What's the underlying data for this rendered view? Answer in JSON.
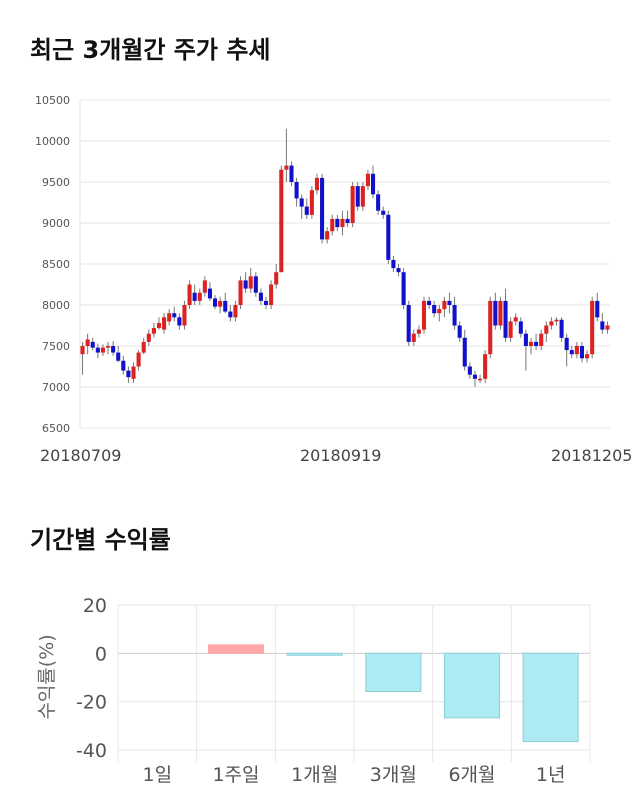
{
  "sections": {
    "candle_title": "최근 3개월간 주가 추세",
    "returns_title": "기간별 수익률"
  },
  "colors": {
    "up": "#dd2222",
    "down": "#1111cc",
    "grid": "#e6e6e6",
    "return_positive_fill": "#ffa7a7",
    "return_negative_fill": "#aeeaf2",
    "return_negative_stroke": "#8ccfd8"
  },
  "chart_data": [
    {
      "type": "candlestick",
      "title": "최근 3개월간 주가 추세",
      "ylim": [
        6500,
        10500
      ],
      "yticks": [
        6500,
        7000,
        7500,
        8000,
        8500,
        9000,
        9500,
        10000,
        10500
      ],
      "x_tick_labels": [
        "20180709",
        "20180919",
        "20181205"
      ],
      "grid": true,
      "ohlc": [
        [
          7400,
          7550,
          7150,
          7500
        ],
        [
          7500,
          7650,
          7400,
          7580
        ],
        [
          7550,
          7600,
          7450,
          7480
        ],
        [
          7480,
          7530,
          7350,
          7420
        ],
        [
          7420,
          7520,
          7380,
          7480
        ],
        [
          7480,
          7550,
          7400,
          7500
        ],
        [
          7500,
          7560,
          7380,
          7420
        ],
        [
          7420,
          7500,
          7300,
          7320
        ],
        [
          7320,
          7380,
          7150,
          7200
        ],
        [
          7200,
          7250,
          7050,
          7120
        ],
        [
          7100,
          7300,
          7050,
          7250
        ],
        [
          7250,
          7450,
          7200,
          7420
        ],
        [
          7420,
          7600,
          7400,
          7550
        ],
        [
          7550,
          7700,
          7500,
          7650
        ],
        [
          7650,
          7780,
          7600,
          7720
        ],
        [
          7720,
          7850,
          7700,
          7780
        ],
        [
          7700,
          7900,
          7650,
          7850
        ],
        [
          7800,
          7950,
          7750,
          7900
        ],
        [
          7900,
          7980,
          7800,
          7850
        ],
        [
          7850,
          7900,
          7700,
          7750
        ],
        [
          7750,
          8050,
          7700,
          8000
        ],
        [
          8000,
          8300,
          7950,
          8250
        ],
        [
          8150,
          8250,
          8000,
          8050
        ],
        [
          8050,
          8200,
          8000,
          8150
        ],
        [
          8150,
          8350,
          8100,
          8300
        ],
        [
          8200,
          8280,
          8050,
          8080
        ],
        [
          8080,
          8120,
          7950,
          7980
        ],
        [
          7980,
          8100,
          7900,
          8050
        ],
        [
          8050,
          8150,
          7900,
          7920
        ],
        [
          7920,
          8000,
          7800,
          7850
        ],
        [
          7850,
          8050,
          7800,
          8000
        ],
        [
          8000,
          8350,
          7950,
          8300
        ],
        [
          8300,
          8400,
          8150,
          8200
        ],
        [
          8200,
          8450,
          8150,
          8350
        ],
        [
          8350,
          8400,
          8100,
          8150
        ],
        [
          8150,
          8200,
          8000,
          8050
        ],
        [
          8050,
          8100,
          7950,
          8000
        ],
        [
          8000,
          8300,
          7950,
          8250
        ],
        [
          8250,
          8500,
          8200,
          8400
        ],
        [
          8400,
          9700,
          8400,
          9650
        ],
        [
          9650,
          10150,
          9500,
          9700
        ],
        [
          9700,
          9750,
          9450,
          9500
        ],
        [
          9500,
          9550,
          9200,
          9300
        ],
        [
          9300,
          9350,
          9050,
          9200
        ],
        [
          9200,
          9300,
          9050,
          9100
        ],
        [
          9100,
          9450,
          9050,
          9400
        ],
        [
          9400,
          9600,
          9350,
          9550
        ],
        [
          9550,
          9600,
          8750,
          8800
        ],
        [
          8800,
          8950,
          8750,
          8900
        ],
        [
          8900,
          9100,
          8850,
          9050
        ],
        [
          9050,
          9100,
          8900,
          8950
        ],
        [
          8950,
          9150,
          8850,
          9050
        ],
        [
          9050,
          9150,
          8950,
          9000
        ],
        [
          9000,
          9500,
          8950,
          9450
        ],
        [
          9450,
          9500,
          9150,
          9200
        ],
        [
          9200,
          9500,
          9150,
          9450
        ],
        [
          9450,
          9650,
          9400,
          9600
        ],
        [
          9600,
          9700,
          9300,
          9350
        ],
        [
          9350,
          9400,
          9100,
          9150
        ],
        [
          9150,
          9200,
          9050,
          9100
        ],
        [
          9100,
          9150,
          8500,
          8550
        ],
        [
          8550,
          8600,
          8400,
          8450
        ],
        [
          8450,
          8500,
          8350,
          8400
        ],
        [
          8400,
          8450,
          7950,
          8000
        ],
        [
          8000,
          8050,
          7500,
          7550
        ],
        [
          7550,
          7700,
          7500,
          7650
        ],
        [
          7650,
          7750,
          7600,
          7700
        ],
        [
          7700,
          8100,
          7650,
          8050
        ],
        [
          8050,
          8100,
          7950,
          8000
        ],
        [
          8000,
          8050,
          7850,
          7900
        ],
        [
          7900,
          8000,
          7800,
          7950
        ],
        [
          7950,
          8100,
          7850,
          8050
        ],
        [
          8050,
          8150,
          7900,
          8000
        ],
        [
          8000,
          8100,
          7700,
          7750
        ],
        [
          7750,
          7800,
          7550,
          7600
        ],
        [
          7600,
          7700,
          7200,
          7250
        ],
        [
          7250,
          7300,
          7100,
          7150
        ],
        [
          7150,
          7200,
          7000,
          7100
        ],
        [
          7100,
          7150,
          7050,
          7100
        ],
        [
          7100,
          7450,
          7050,
          7400
        ],
        [
          7400,
          8100,
          7350,
          8050
        ],
        [
          8050,
          8150,
          7700,
          7750
        ],
        [
          7750,
          8100,
          7700,
          8050
        ],
        [
          8050,
          8200,
          7550,
          7600
        ],
        [
          7600,
          7850,
          7550,
          7800
        ],
        [
          7800,
          7900,
          7750,
          7850
        ],
        [
          7800,
          7850,
          7600,
          7650
        ],
        [
          7650,
          7700,
          7200,
          7500
        ],
        [
          7500,
          7600,
          7400,
          7550
        ],
        [
          7550,
          7650,
          7450,
          7500
        ],
        [
          7500,
          7700,
          7450,
          7650
        ],
        [
          7650,
          7800,
          7550,
          7750
        ],
        [
          7750,
          7850,
          7700,
          7800
        ],
        [
          7800,
          7850,
          7750,
          7820
        ],
        [
          7820,
          7850,
          7550,
          7600
        ],
        [
          7600,
          7650,
          7250,
          7450
        ],
        [
          7450,
          7500,
          7350,
          7400
        ],
        [
          7400,
          7550,
          7350,
          7500
        ],
        [
          7500,
          7550,
          7300,
          7350
        ],
        [
          7350,
          7450,
          7300,
          7400
        ],
        [
          7400,
          8100,
          7350,
          8050
        ],
        [
          8050,
          8150,
          7800,
          7850
        ],
        [
          7800,
          7900,
          7650,
          7700
        ],
        [
          7700,
          7800,
          7650,
          7750
        ]
      ]
    },
    {
      "type": "bar",
      "title": "기간별 수익률",
      "categories": [
        "1일",
        "1주일",
        "1개월",
        "3개월",
        "6개월",
        "1년"
      ],
      "values": [
        0,
        3.5,
        -0.8,
        -15.8,
        -26.7,
        -36.5
      ],
      "ylabel": "수익률(%)",
      "ylim": [
        -40,
        20
      ],
      "yticks": [
        20,
        0,
        -20,
        -40
      ],
      "grid": true
    }
  ]
}
